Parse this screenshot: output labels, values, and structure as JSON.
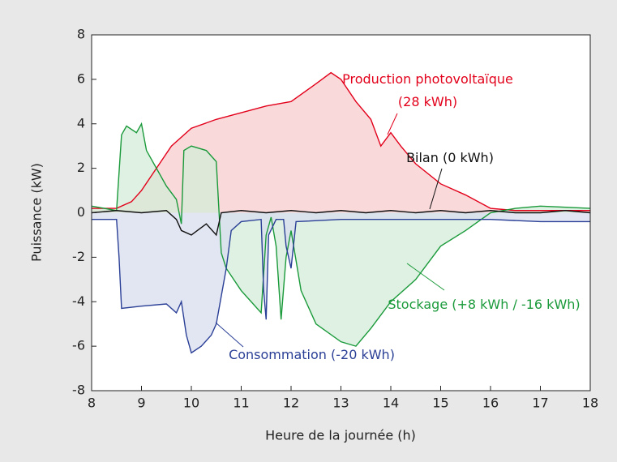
{
  "chart_data": {
    "type": "area",
    "xlabel": "Heure de la journée (h)",
    "ylabel": "Puissance (kW)",
    "xlim": [
      8,
      18
    ],
    "xticks": [
      8,
      9,
      10,
      11,
      12,
      13,
      14,
      15,
      16,
      17,
      18
    ],
    "ylim": [
      -8,
      8
    ],
    "yticks": [
      -8,
      -6,
      -4,
      -2,
      0,
      2,
      4,
      6,
      8
    ],
    "series": [
      {
        "name": "Production photovoltaïque (28 kWh)",
        "color": "#e2001a",
        "fill": "#f8cccf",
        "x": [
          8,
          8.5,
          8.8,
          9,
          9.3,
          9.6,
          10,
          10.5,
          11,
          11.5,
          12,
          12.5,
          12.8,
          13,
          13.3,
          13.6,
          13.8,
          14,
          14.2,
          14.5,
          15,
          15.5,
          16,
          16.5,
          17,
          18
        ],
        "values": [
          0.2,
          0.2,
          0.5,
          1.0,
          2.0,
          3.0,
          3.8,
          4.2,
          4.5,
          4.8,
          5.0,
          5.8,
          6.3,
          6.0,
          5.0,
          4.2,
          3.0,
          3.6,
          3.0,
          2.2,
          1.3,
          0.8,
          0.2,
          0.1,
          0.1,
          0.1
        ]
      },
      {
        "name": "Stockage (+8 kWh / -16 kWh)",
        "color": "#1a9a3a",
        "fill": "#d3ecd8",
        "x": [
          8,
          8.5,
          8.6,
          8.7,
          8.9,
          9.0,
          9.1,
          9.3,
          9.5,
          9.7,
          9.8,
          9.85,
          10,
          10.3,
          10.5,
          10.6,
          10.7,
          11,
          11.2,
          11.4,
          11.5,
          11.6,
          11.7,
          11.8,
          11.9,
          12.0,
          12.2,
          12.5,
          13,
          13.3,
          13.6,
          14,
          14.5,
          15,
          15.5,
          16,
          16.5,
          17,
          18
        ],
        "values": [
          0.3,
          0.1,
          3.5,
          3.9,
          3.6,
          4.0,
          2.8,
          2.0,
          1.2,
          0.6,
          -0.5,
          2.8,
          3.0,
          2.8,
          2.3,
          -1.8,
          -2.5,
          -3.5,
          -4.0,
          -4.5,
          -1.0,
          -0.2,
          -1.5,
          -4.8,
          -2.0,
          -0.8,
          -3.5,
          -5.0,
          -5.8,
          -6.0,
          -5.2,
          -4.0,
          -3.0,
          -1.5,
          -0.8,
          0.0,
          0.2,
          0.3,
          0.2
        ]
      },
      {
        "name": "Consommation (-20 kWh)",
        "color": "#2a3f96",
        "fill": "#d8dcee",
        "x": [
          8,
          8.5,
          8.55,
          8.6,
          9,
          9.5,
          9.7,
          9.8,
          9.9,
          10,
          10.2,
          10.4,
          10.5,
          10.7,
          10.8,
          11,
          11.4,
          11.45,
          11.5,
          11.55,
          11.7,
          11.85,
          11.9,
          12.0,
          12.1,
          13,
          15,
          16,
          17,
          18
        ],
        "values": [
          -0.3,
          -0.3,
          -2.0,
          -4.3,
          -4.2,
          -4.1,
          -4.5,
          -4.0,
          -5.5,
          -6.3,
          -6.0,
          -5.5,
          -5.0,
          -2.5,
          -0.8,
          -0.4,
          -0.3,
          -3.5,
          -4.8,
          -1.0,
          -0.3,
          -0.3,
          -1.5,
          -2.5,
          -0.4,
          -0.3,
          -0.3,
          -0.3,
          -0.4,
          -0.4
        ]
      },
      {
        "name": "Bilan (0 kWh)",
        "color": "#111111",
        "x": [
          8,
          8.5,
          9,
          9.5,
          9.7,
          9.8,
          10,
          10.3,
          10.5,
          10.6,
          11,
          11.5,
          12,
          12.5,
          13,
          13.5,
          14,
          14.5,
          15,
          15.5,
          16,
          16.5,
          17,
          17.5,
          18
        ],
        "values": [
          0.0,
          0.1,
          0.0,
          0.1,
          -0.3,
          -0.8,
          -1.0,
          -0.5,
          -1.0,
          0.0,
          0.1,
          0.0,
          0.1,
          0.0,
          0.1,
          0.0,
          0.1,
          0.0,
          0.1,
          0.0,
          0.1,
          0.0,
          0.0,
          0.1,
          0.0
        ]
      }
    ]
  }
}
